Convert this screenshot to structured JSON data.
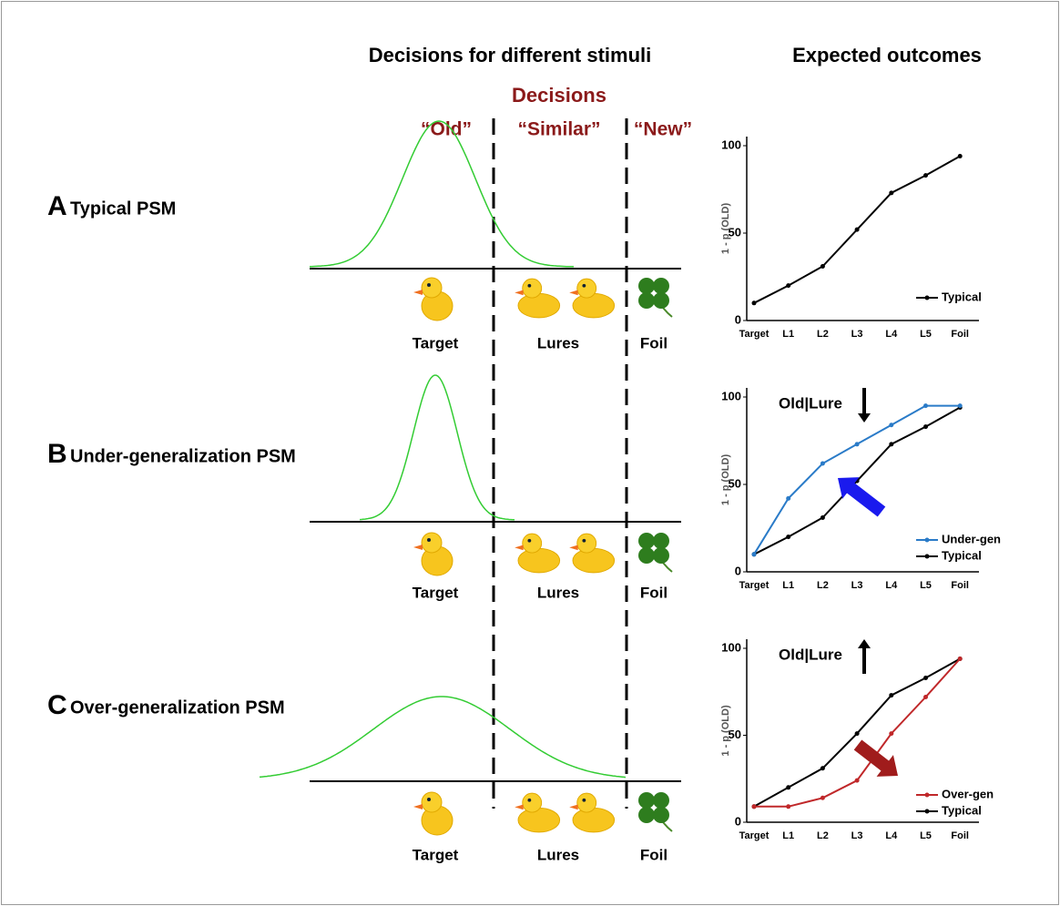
{
  "header": {
    "left_title": "Decisions for different stimuli",
    "right_title": "Expected outcomes"
  },
  "decisions": {
    "title": "Decisions",
    "old": "“Old”",
    "similar": "“Similar”",
    "new": "“New”"
  },
  "rows": [
    {
      "letter": "A",
      "label": "Typical PSM",
      "target": "Target",
      "lures": "Lures",
      "foil": "Foil"
    },
    {
      "letter": "B",
      "label": "Under-generalization PSM",
      "target": "Target",
      "lures": "Lures",
      "foil": "Foil"
    },
    {
      "letter": "C",
      "label": "Over-generalization PSM",
      "target": "Target",
      "lures": "Lures",
      "foil": "Foil"
    }
  ],
  "chart_data": [
    {
      "type": "line",
      "categories": [
        "Target",
        "L1",
        "L2",
        "L3",
        "L4",
        "L5",
        "Foil"
      ],
      "ylabel": "1 - p (OLD)",
      "ylim": [
        0,
        100
      ],
      "yticks": [
        0,
        50,
        100
      ],
      "series": [
        {
          "name": "Typical",
          "color": "#000000",
          "values": [
            10,
            20,
            31,
            52,
            73,
            83,
            94
          ]
        }
      ]
    },
    {
      "type": "line",
      "categories": [
        "Target",
        "L1",
        "L2",
        "L3",
        "L4",
        "L5",
        "Foil"
      ],
      "ylabel": "1 - p (OLD)",
      "ylim": [
        0,
        100
      ],
      "yticks": [
        0,
        50,
        100
      ],
      "annotation": "Old|Lure",
      "series": [
        {
          "name": "Under-gen",
          "color": "#2a7bc8",
          "values": [
            10,
            42,
            62,
            73,
            84,
            95,
            95
          ]
        },
        {
          "name": "Typical",
          "color": "#000000",
          "values": [
            10,
            20,
            31,
            52,
            73,
            83,
            94
          ]
        }
      ]
    },
    {
      "type": "line",
      "categories": [
        "Target",
        "L1",
        "L2",
        "L3",
        "L4",
        "L5",
        "Foil"
      ],
      "ylabel": "1 - p (OLD)",
      "ylim": [
        0,
        100
      ],
      "yticks": [
        0,
        50,
        100
      ],
      "annotation": "Old|Lure",
      "series": [
        {
          "name": "Over-gen",
          "color": "#c0282a",
          "values": [
            9,
            9,
            14,
            24,
            51,
            72,
            94
          ]
        },
        {
          "name": "Typical",
          "color": "#000000",
          "values": [
            9,
            20,
            31,
            51,
            73,
            83,
            94
          ]
        }
      ]
    }
  ]
}
